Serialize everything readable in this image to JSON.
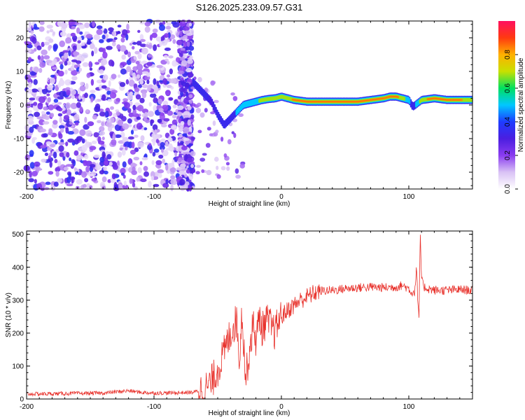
{
  "figure_title": "S126.2025.233.09.57.G31",
  "colors": {
    "snr_line": "#e8302a",
    "frame": "#000000",
    "background": "#ffffff",
    "colormap": [
      "#ffffff",
      "#d9c2f5",
      "#8a3cf0",
      "#4b1ee0",
      "#1e3cff",
      "#00c8ff",
      "#00e060",
      "#c8e000",
      "#ffb000",
      "#ff3a10",
      "#ff1060"
    ]
  },
  "chart_data": [
    {
      "type": "heatmap",
      "title": "S126.2025.233.09.57.G31",
      "xlabel": "Height of straight line (km)",
      "ylabel": "Frequency (Hz)",
      "xlim": [
        -200,
        150
      ],
      "ylim": [
        -25,
        25
      ],
      "xticks": [
        -200,
        -100,
        0,
        100
      ],
      "xtick_labels": [
        "-200",
        "-100",
        "0",
        "100"
      ],
      "yticks": [
        20,
        10,
        0,
        -10,
        -20
      ],
      "ytick_labels": [
        "20",
        "10",
        "0",
        "-10",
        "-20"
      ],
      "colorbar": {
        "label": "Normalized spectral amplitude",
        "range": [
          0,
          1
        ],
        "ticks": [
          0.0,
          0.2,
          0.4,
          0.6,
          0.8
        ],
        "tick_labels": [
          "0.0",
          "0.2",
          "0.4",
          "0.6",
          "0.8"
        ]
      },
      "noise_region_km": [
        -200,
        -70
      ],
      "ridge": {
        "x": [
          -70,
          -65,
          -60,
          -55,
          -50,
          -45,
          -40,
          -35,
          -30,
          -25,
          -20,
          -15,
          -10,
          -5,
          0,
          10,
          20,
          30,
          40,
          50,
          60,
          70,
          80,
          85,
          90,
          95,
          100,
          103,
          105,
          110,
          120,
          130,
          140,
          150
        ],
        "freq": [
          7,
          5,
          3,
          1,
          -3,
          -6,
          -4,
          -2,
          0,
          0.5,
          1,
          1.5,
          1.8,
          2,
          2.5,
          1.5,
          1,
          1,
          1,
          1,
          1,
          1.5,
          2,
          2.5,
          2.5,
          2,
          1.5,
          -0.5,
          0,
          1.5,
          2,
          1.5,
          1.5,
          1.5
        ],
        "amplitude": [
          0.35,
          0.4,
          0.35,
          0.3,
          0.35,
          0.4,
          0.45,
          0.5,
          0.55,
          0.6,
          0.65,
          0.7,
          0.75,
          0.8,
          0.8,
          0.85,
          0.9,
          0.92,
          0.95,
          0.95,
          0.92,
          0.9,
          0.95,
          0.95,
          0.9,
          0.75,
          0.5,
          0.45,
          0.5,
          0.8,
          0.9,
          0.92,
          0.85,
          0.8
        ]
      }
    },
    {
      "type": "line",
      "xlabel": "Height of straight line (km)",
      "ylabel": "SNR (10 * v/v)",
      "xlim": [
        -200,
        150
      ],
      "ylim": [
        0,
        510
      ],
      "xticks": [
        -200,
        -100,
        0,
        100
      ],
      "xtick_labels": [
        "-200",
        "-100",
        "0",
        "100"
      ],
      "yticks": [
        0,
        100,
        200,
        300,
        400,
        500
      ],
      "ytick_labels": [
        "0",
        "100",
        "200",
        "300",
        "400",
        "500"
      ],
      "series": [
        {
          "name": "SNR",
          "x": [
            -200,
            -180,
            -160,
            -140,
            -120,
            -110,
            -100,
            -80,
            -70,
            -60,
            -55,
            -50,
            -45,
            -40,
            -35,
            -33,
            -31,
            -30,
            -28,
            -25,
            -22,
            -20,
            -17,
            -15,
            -12,
            -10,
            -8,
            -5,
            -2,
            0,
            5,
            10,
            15,
            20,
            25,
            30,
            40,
            50,
            60,
            70,
            80,
            90,
            95,
            100,
            103,
            105,
            106,
            107,
            108,
            109,
            110,
            112,
            115,
            120,
            130,
            140,
            150
          ],
          "y": [
            15,
            16,
            17,
            18,
            25,
            20,
            18,
            19,
            20,
            30,
            50,
            90,
            140,
            200,
            240,
            120,
            260,
            200,
            60,
            150,
            230,
            180,
            250,
            210,
            240,
            230,
            220,
            200,
            240,
            250,
            270,
            285,
            300,
            310,
            320,
            328,
            330,
            335,
            338,
            340,
            338,
            340,
            345,
            335,
            320,
            330,
            410,
            300,
            240,
            510,
            360,
            340,
            335,
            330,
            330,
            332,
            330
          ]
        }
      ]
    }
  ]
}
